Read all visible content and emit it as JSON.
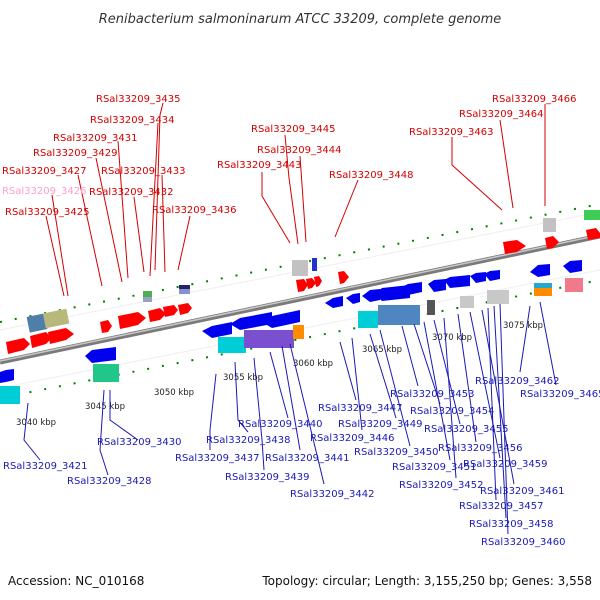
{
  "title": "Renibacterium salmoninarum ATCC 33209, complete genome",
  "footer": {
    "accession": "Accession: NC_010168",
    "summary": "Topology: circular; Length: 3,155,250 bp; Genes: 3,558"
  },
  "colors": {
    "backbone": "#8c8c8c",
    "top_label": "#d40000",
    "top_label_dim": "#ff9ecf",
    "bottom_label": "#1a1ab4",
    "forward_gene": "#ff0000",
    "reverse_gene": "#0000ee",
    "tick_mark": "#008000"
  },
  "scale_labels": [
    "3040 kbp",
    "3045 kbp",
    "3050 kbp",
    "3055 kbp",
    "3060 kbp",
    "3065 kbp",
    "3070 kbp",
    "3075 kbp"
  ],
  "top_labels": [
    {
      "id": "tag-3435",
      "text": "RSal33209_3435"
    },
    {
      "id": "tag-3434",
      "text": "RSal33209_3434"
    },
    {
      "id": "tag-3431",
      "text": "RSal33209_3431"
    },
    {
      "id": "tag-3429",
      "text": "RSal33209_3429"
    },
    {
      "id": "tag-3433",
      "text": "RSal33209_3433"
    },
    {
      "id": "tag-3427",
      "text": "RSal33209_3427"
    },
    {
      "id": "tag-3426",
      "text": "RSal33209_3426",
      "dim": true
    },
    {
      "id": "tag-3432",
      "text": "RSal33209_3432"
    },
    {
      "id": "tag-3425",
      "text": "RSal33209_3425"
    },
    {
      "id": "tag-3436",
      "text": "RSal33209_3436"
    },
    {
      "id": "tag-3445",
      "text": "RSal33209_3445"
    },
    {
      "id": "tag-3444",
      "text": "RSal33209_3444"
    },
    {
      "id": "tag-3443",
      "text": "RSal33209_3443"
    },
    {
      "id": "tag-3448",
      "text": "RSal33209_3448"
    },
    {
      "id": "tag-3466",
      "text": "RSal33209_3466"
    },
    {
      "id": "tag-3464",
      "text": "RSal33209_3464"
    },
    {
      "id": "tag-3463",
      "text": "RSal33209_3463"
    }
  ],
  "bottom_labels": [
    {
      "id": "tag-3421",
      "text": "RSal33209_3421"
    },
    {
      "id": "tag-3428",
      "text": "RSal33209_3428"
    },
    {
      "id": "tag-3430",
      "text": "RSal33209_3430"
    },
    {
      "id": "tag-3438",
      "text": "RSal33209_3438"
    },
    {
      "id": "tag-3437",
      "text": "RSal33209_3437"
    },
    {
      "id": "tag-3439",
      "text": "RSal33209_3439"
    },
    {
      "id": "tag-3440",
      "text": "RSal33209_3440"
    },
    {
      "id": "tag-3441",
      "text": "RSal33209_3441"
    },
    {
      "id": "tag-3442",
      "text": "RSal33209_3442"
    },
    {
      "id": "tag-3447",
      "text": "RSal33209_3447"
    },
    {
      "id": "tag-3446",
      "text": "RSal33209_3446"
    },
    {
      "id": "tag-3449",
      "text": "RSal33209_3449"
    },
    {
      "id": "tag-3450",
      "text": "RSal33209_3450"
    },
    {
      "id": "tag-3453",
      "text": "RSal33209_3453"
    },
    {
      "id": "tag-3454",
      "text": "RSal33209_3454"
    },
    {
      "id": "tag-3451",
      "text": "RSal33209_3451"
    },
    {
      "id": "tag-3455",
      "text": "RSal33209_3455"
    },
    {
      "id": "tag-3452",
      "text": "RSal33209_3452"
    },
    {
      "id": "tag-3456",
      "text": "RSal33209_3456"
    },
    {
      "id": "tag-3459",
      "text": "RSal33209_3459"
    },
    {
      "id": "tag-3462",
      "text": "RSal33209_3462"
    },
    {
      "id": "tag-3465",
      "text": "RSal33209_3465"
    },
    {
      "id": "tag-3461",
      "text": "RSal33209_3461"
    },
    {
      "id": "tag-3457",
      "text": "RSal33209_3457"
    },
    {
      "id": "tag-3458",
      "text": "RSal33209_3458"
    },
    {
      "id": "tag-3460",
      "text": "RSal33209_3460"
    }
  ]
}
